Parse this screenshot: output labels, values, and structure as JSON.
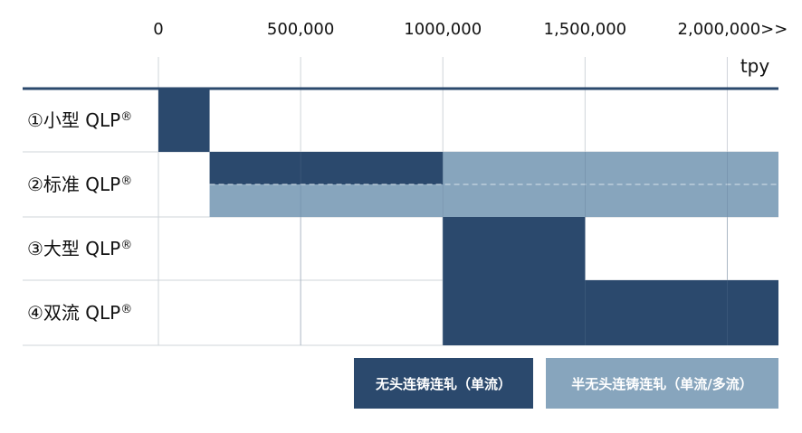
{
  "chart_data": {
    "type": "bar",
    "unit": "tpy",
    "ticks": [
      {
        "value": 0,
        "label": "0"
      },
      {
        "value": 500000,
        "label": "500,000"
      },
      {
        "value": 1000000,
        "label": "1000,000"
      },
      {
        "value": 1500000,
        "label": "1,500,000"
      },
      {
        "value": 2000000,
        "label": "2,000,000>>"
      }
    ],
    "xlim": [
      0,
      2180000
    ],
    "categories": [
      "①小型 QLP",
      "②标准 QLP",
      "③大型 QLP",
      "④双流 QLP"
    ],
    "registered_mark": "®",
    "series": [
      {
        "name": "无头连铸连轧（单流）",
        "color": "#2b496d",
        "ranges": [
          {
            "category": 0,
            "start": 0,
            "end": 180000
          },
          {
            "category": 1,
            "start": 180000,
            "end": 1000000
          },
          {
            "category": 2,
            "start": 1000000,
            "end": 1500000
          },
          {
            "category": 3,
            "start": 1000000,
            "end": 2180000
          }
        ]
      },
      {
        "name": "半无头连铸连轧（单流/多流）",
        "color": "#87a5bd",
        "ranges": [
          {
            "category": 1,
            "start": 1000000,
            "end": 2180000
          },
          {
            "category": 1,
            "start": 180000,
            "end": 1000000
          }
        ]
      }
    ],
    "grid": true,
    "legend_position": "bottom-right"
  }
}
